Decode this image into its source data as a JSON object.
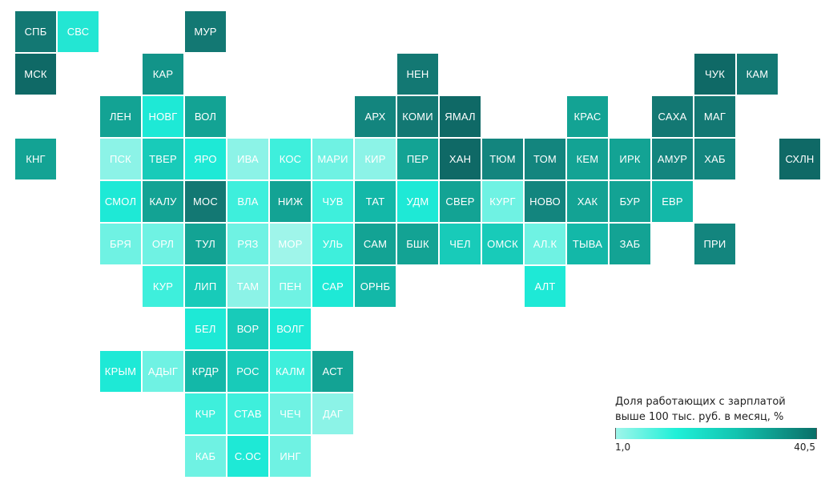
{
  "regions": [
    {
      "label": "СПБ",
      "col": 0,
      "row": 0,
      "color": "#137873"
    },
    {
      "label": "СВС",
      "col": 1,
      "row": 0,
      "color": "#23e6d3"
    },
    {
      "label": "МУР",
      "col": 4,
      "row": 0,
      "color": "#137873"
    },
    {
      "label": "МСК",
      "col": 0,
      "row": 1,
      "color": "#0f6966"
    },
    {
      "label": "КАР",
      "col": 3,
      "row": 1,
      "color": "#129489"
    },
    {
      "label": "НЕН",
      "col": 9,
      "row": 1,
      "color": "#137873"
    },
    {
      "label": "ЧУК",
      "col": 16,
      "row": 1,
      "color": "#0f6966"
    },
    {
      "label": "КАМ",
      "col": 17,
      "row": 1,
      "color": "#137873"
    },
    {
      "label": "ЛЕН",
      "col": 2,
      "row": 2,
      "color": "#13a394"
    },
    {
      "label": "НОВГ",
      "col": 3,
      "row": 2,
      "color": "#1ee9d6"
    },
    {
      "label": "ВОЛ",
      "col": 4,
      "row": 2,
      "color": "#13a394"
    },
    {
      "label": "АРХ",
      "col": 8,
      "row": 2,
      "color": "#13857e"
    },
    {
      "label": "КОМИ",
      "col": 9,
      "row": 2,
      "color": "#137873"
    },
    {
      "label": "ЯМАЛ",
      "col": 10,
      "row": 2,
      "color": "#0f6966"
    },
    {
      "label": "КРАС",
      "col": 13,
      "row": 2,
      "color": "#13a394"
    },
    {
      "label": "САХА",
      "col": 15,
      "row": 2,
      "color": "#137873"
    },
    {
      "label": "МАГ",
      "col": 16,
      "row": 2,
      "color": "#137873"
    },
    {
      "label": "КНГ",
      "col": 0,
      "row": 3,
      "color": "#13a394"
    },
    {
      "label": "ПСК",
      "col": 2,
      "row": 3,
      "color": "#8cf3e7"
    },
    {
      "label": "ТВЕР",
      "col": 3,
      "row": 3,
      "color": "#18cbb9"
    },
    {
      "label": "ЯРО",
      "col": 4,
      "row": 3,
      "color": "#1ee9d6"
    },
    {
      "label": "ИВА",
      "col": 5,
      "row": 3,
      "color": "#8cf3e7"
    },
    {
      "label": "КОС",
      "col": 6,
      "row": 3,
      "color": "#3eefdc"
    },
    {
      "label": "МАРИ",
      "col": 7,
      "row": 3,
      "color": "#6ff2e3"
    },
    {
      "label": "КИР",
      "col": 8,
      "row": 3,
      "color": "#8cf3e7"
    },
    {
      "label": "ПЕР",
      "col": 9,
      "row": 3,
      "color": "#13a394"
    },
    {
      "label": "ХАН",
      "col": 10,
      "row": 3,
      "color": "#0f6966"
    },
    {
      "label": "ТЮМ",
      "col": 11,
      "row": 3,
      "color": "#13857e"
    },
    {
      "label": "ТОМ",
      "col": 12,
      "row": 3,
      "color": "#13857e"
    },
    {
      "label": "КЕМ",
      "col": 13,
      "row": 3,
      "color": "#13a394"
    },
    {
      "label": "ИРК",
      "col": 14,
      "row": 3,
      "color": "#13a394"
    },
    {
      "label": "АМУР",
      "col": 15,
      "row": 3,
      "color": "#13857e"
    },
    {
      "label": "ХАБ",
      "col": 16,
      "row": 3,
      "color": "#13857e"
    },
    {
      "label": "СХЛН",
      "col": 18,
      "row": 3,
      "color": "#0f6966"
    },
    {
      "label": "СМОЛ",
      "col": 2,
      "row": 4,
      "color": "#1ee9d6"
    },
    {
      "label": "КАЛУ",
      "col": 3,
      "row": 4,
      "color": "#13a394"
    },
    {
      "label": "МОС",
      "col": 4,
      "row": 4,
      "color": "#137873"
    },
    {
      "label": "ВЛА",
      "col": 5,
      "row": 4,
      "color": "#3eefdc"
    },
    {
      "label": "НИЖ",
      "col": 6,
      "row": 4,
      "color": "#13a394"
    },
    {
      "label": "ЧУВ",
      "col": 7,
      "row": 4,
      "color": "#3eefdc"
    },
    {
      "label": "ТАТ",
      "col": 8,
      "row": 4,
      "color": "#13b8a8"
    },
    {
      "label": "УДМ",
      "col": 9,
      "row": 4,
      "color": "#1ee9d6"
    },
    {
      "label": "СВЕР",
      "col": 10,
      "row": 4,
      "color": "#13a394"
    },
    {
      "label": "КУРГ",
      "col": 11,
      "row": 4,
      "color": "#6ff2e3"
    },
    {
      "label": "НОВО",
      "col": 12,
      "row": 4,
      "color": "#13857e"
    },
    {
      "label": "ХАК",
      "col": 13,
      "row": 4,
      "color": "#13a394"
    },
    {
      "label": "БУР",
      "col": 14,
      "row": 4,
      "color": "#13a394"
    },
    {
      "label": "ЕВР",
      "col": 15,
      "row": 4,
      "color": "#13b8a8"
    },
    {
      "label": "БРЯ",
      "col": 2,
      "row": 5,
      "color": "#6ff2e3"
    },
    {
      "label": "ОРЛ",
      "col": 3,
      "row": 5,
      "color": "#6ff2e3"
    },
    {
      "label": "ТУЛ",
      "col": 4,
      "row": 5,
      "color": "#13a394"
    },
    {
      "label": "РЯЗ",
      "col": 5,
      "row": 5,
      "color": "#6ff2e3"
    },
    {
      "label": "МОР",
      "col": 6,
      "row": 5,
      "color": "#9ff5ea"
    },
    {
      "label": "УЛЬ",
      "col": 7,
      "row": 5,
      "color": "#3eefdc"
    },
    {
      "label": "САМ",
      "col": 8,
      "row": 5,
      "color": "#13a394"
    },
    {
      "label": "БШК",
      "col": 9,
      "row": 5,
      "color": "#13a394"
    },
    {
      "label": "ЧЕЛ",
      "col": 10,
      "row": 5,
      "color": "#18cbb9"
    },
    {
      "label": "ОМСК",
      "col": 11,
      "row": 5,
      "color": "#18cbb9"
    },
    {
      "label": "АЛ.К",
      "col": 12,
      "row": 5,
      "color": "#6ff2e3"
    },
    {
      "label": "ТЫВА",
      "col": 13,
      "row": 5,
      "color": "#13b8a8"
    },
    {
      "label": "ЗАБ",
      "col": 14,
      "row": 5,
      "color": "#13a394"
    },
    {
      "label": "ПРИ",
      "col": 16,
      "row": 5,
      "color": "#13857e"
    },
    {
      "label": "КУР",
      "col": 3,
      "row": 6,
      "color": "#3eefdc"
    },
    {
      "label": "ЛИП",
      "col": 4,
      "row": 6,
      "color": "#18cbb9"
    },
    {
      "label": "ТАМ",
      "col": 5,
      "row": 6,
      "color": "#8cf3e7"
    },
    {
      "label": "ПЕН",
      "col": 6,
      "row": 6,
      "color": "#6ff2e3"
    },
    {
      "label": "САР",
      "col": 7,
      "row": 6,
      "color": "#1ee9d6"
    },
    {
      "label": "ОРНБ",
      "col": 8,
      "row": 6,
      "color": "#13b8a8"
    },
    {
      "label": "АЛТ",
      "col": 12,
      "row": 6,
      "color": "#1ee9d6"
    },
    {
      "label": "БЕЛ",
      "col": 4,
      "row": 7,
      "color": "#1ee9d6"
    },
    {
      "label": "ВОР",
      "col": 5,
      "row": 7,
      "color": "#18cbb9"
    },
    {
      "label": "ВОЛГ",
      "col": 6,
      "row": 7,
      "color": "#1ee9d6"
    },
    {
      "label": "КРЫМ",
      "col": 2,
      "row": 8,
      "color": "#1ee9d6"
    },
    {
      "label": "АДЫГ",
      "col": 3,
      "row": 8,
      "color": "#6ff2e3"
    },
    {
      "label": "КРДР",
      "col": 4,
      "row": 8,
      "color": "#13b8a8"
    },
    {
      "label": "РОС",
      "col": 5,
      "row": 8,
      "color": "#18cbb9"
    },
    {
      "label": "КАЛМ",
      "col": 6,
      "row": 8,
      "color": "#3eefdc"
    },
    {
      "label": "АСТ",
      "col": 7,
      "row": 8,
      "color": "#13a394"
    },
    {
      "label": "КЧР",
      "col": 4,
      "row": 9,
      "color": "#3eefdc"
    },
    {
      "label": "СТАВ",
      "col": 5,
      "row": 9,
      "color": "#3eefdc"
    },
    {
      "label": "ЧЕЧ",
      "col": 6,
      "row": 9,
      "color": "#6ff2e3"
    },
    {
      "label": "ДАГ",
      "col": 7,
      "row": 9,
      "color": "#8cf3e7"
    },
    {
      "label": "КАБ",
      "col": 4,
      "row": 10,
      "color": "#6ff2e3"
    },
    {
      "label": "С.ОС",
      "col": 5,
      "row": 10,
      "color": "#1ee9d6"
    },
    {
      "label": "ИНГ",
      "col": 6,
      "row": 10,
      "color": "#6ff2e3"
    }
  ],
  "legend": {
    "title_line1": "Доля работающих с зарплатой",
    "title_line2": "выше 100 тыс. руб. в месяц, %",
    "min_label": "1,0",
    "max_label": "40,5",
    "min_color": "#9ff5ea",
    "max_color": "#0a6f68"
  }
}
